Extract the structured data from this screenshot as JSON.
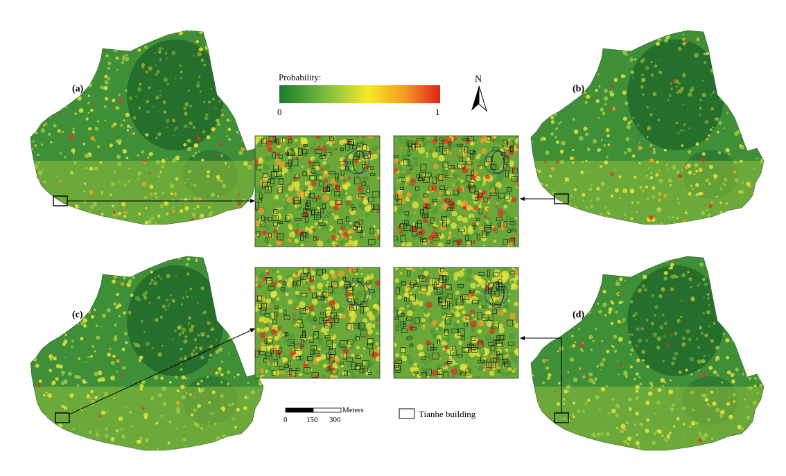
{
  "panels": [
    {
      "id": "a",
      "label": "(a)"
    },
    {
      "id": "b",
      "label": "(b)"
    },
    {
      "id": "c",
      "label": "(c)"
    },
    {
      "id": "d",
      "label": "(d)"
    }
  ],
  "legend": {
    "title": "Probability:",
    "min_label": "0",
    "max_label": "1",
    "colors": [
      "#1a7a2a",
      "#7fbf3f",
      "#f5ea2a",
      "#f39a23",
      "#e02418"
    ]
  },
  "north_arrow": {
    "label": "N"
  },
  "scale_bar": {
    "unit": "Meters",
    "ticks": [
      "0",
      "150",
      "300"
    ]
  },
  "building_legend": {
    "label": "Tianhe building"
  },
  "colors": {
    "low": "#2e7d32",
    "mid": "#c9dc4a",
    "high": "#e8442a",
    "outline": "#111111"
  }
}
